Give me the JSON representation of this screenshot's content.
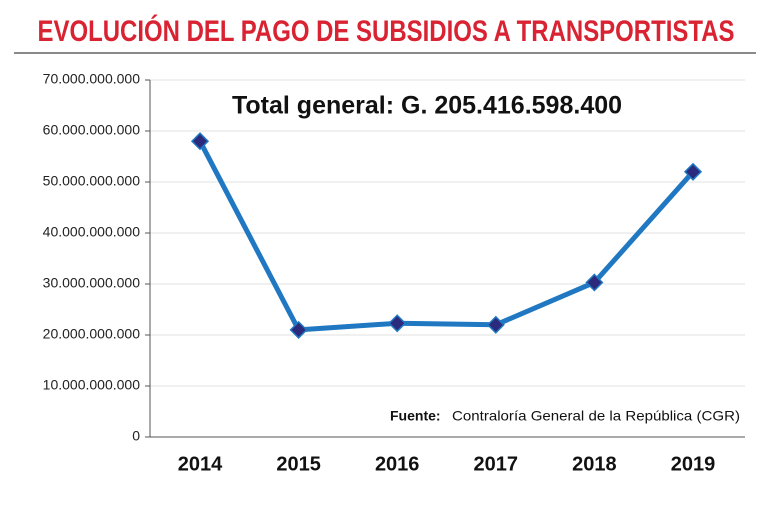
{
  "chart_data": {
    "type": "line",
    "title": "EVOLUCIÓN DEL PAGO DE SUBSIDIOS A TRANSPORTISTAS",
    "annotation": "Total general: G. 205.416.598.400",
    "source_label": "Fuente:",
    "source": "Contraloría General de la República (CGR)",
    "categories": [
      "2014",
      "2015",
      "2016",
      "2017",
      "2018",
      "2019"
    ],
    "values": [
      58000000000,
      21000000000,
      22300000000,
      22000000000,
      30300000000,
      52000000000
    ],
    "color": "#1f78c1",
    "marker_color": "#2b2a7c",
    "ylim": [
      0,
      70000000000
    ],
    "yticks": [
      0,
      {
        "value": 10000000000,
        "label": "10.000.000.000"
      },
      {
        "value": 20000000000,
        "label": "20.000.000.000"
      },
      {
        "value": 30000000000,
        "label": "30.000.000.000"
      },
      {
        "value": 40000000000,
        "label": "40.000.000.000"
      },
      {
        "value": 50000000000,
        "label": "50.000.000.000"
      },
      {
        "value": 60000000000,
        "label": "60.000.000.000"
      },
      {
        "value": 70000000000,
        "label": "70.000.000.000"
      }
    ],
    "grid": true
  }
}
